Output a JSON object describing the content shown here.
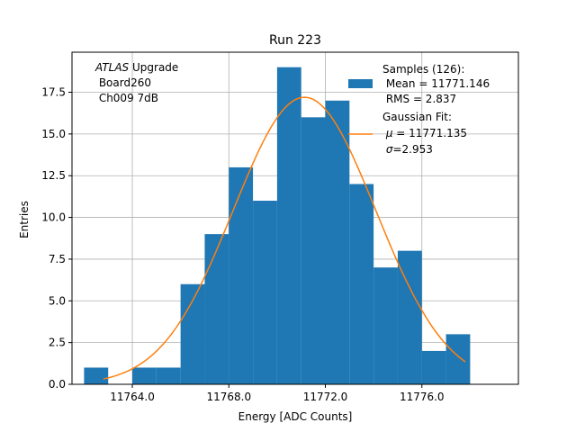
{
  "chart_data": {
    "type": "bar",
    "title": "Run 223",
    "xlabel": "Energy [ADC Counts]",
    "ylabel": "Entries",
    "xlim": [
      11761.5,
      11780.0
    ],
    "ylim": [
      0,
      19.9
    ],
    "x_ticks": [
      "11764.0",
      "11768.0",
      "11772.0",
      "11776.0"
    ],
    "x_tick_values": [
      11764,
      11768,
      11772,
      11776
    ],
    "y_ticks": [
      "0.0",
      "2.5",
      "5.0",
      "7.5",
      "10.0",
      "12.5",
      "15.0",
      "17.5"
    ],
    "y_tick_values": [
      0,
      2.5,
      5,
      7.5,
      10,
      12.5,
      15,
      17.5
    ],
    "grid": true,
    "bar_color": "#1f77b4",
    "fit_color": "#ff7f0e",
    "bin_width": 1.0,
    "bins": [
      {
        "x": 11762,
        "count": 1
      },
      {
        "x": 11763,
        "count": 0
      },
      {
        "x": 11764,
        "count": 1
      },
      {
        "x": 11765,
        "count": 1
      },
      {
        "x": 11766,
        "count": 6
      },
      {
        "x": 11767,
        "count": 9
      },
      {
        "x": 11768,
        "count": 13
      },
      {
        "x": 11769,
        "count": 11
      },
      {
        "x": 11770,
        "count": 19
      },
      {
        "x": 11771,
        "count": 16
      },
      {
        "x": 11772,
        "count": 17
      },
      {
        "x": 11773,
        "count": 12
      },
      {
        "x": 11774,
        "count": 7
      },
      {
        "x": 11775,
        "count": 8
      },
      {
        "x": 11776,
        "count": 2
      },
      {
        "x": 11777,
        "count": 3
      }
    ],
    "gaussian_fit": {
      "mu": 11771.135,
      "sigma": 2.953,
      "amplitude": 17.2,
      "x_range": [
        11762.8,
        11777.8
      ]
    },
    "annotation": {
      "line1_italic": "ATLAS",
      "line1_rest": " Upgrade",
      "line2": " Board260",
      "line3": " Ch009 7dB"
    },
    "legend": {
      "position": "top-right",
      "samples_line1": "Samples (126):",
      "samples_line2": " Mean = 11771.146",
      "samples_line3": " RMS = 2.837",
      "fit_line1": "Gaussian Fit:",
      "fit_line2_symbol": "μ",
      "fit_line2_rest": " = 11771.135",
      "fit_line3_symbol": "σ",
      "fit_line3_rest": "=2.953"
    }
  }
}
